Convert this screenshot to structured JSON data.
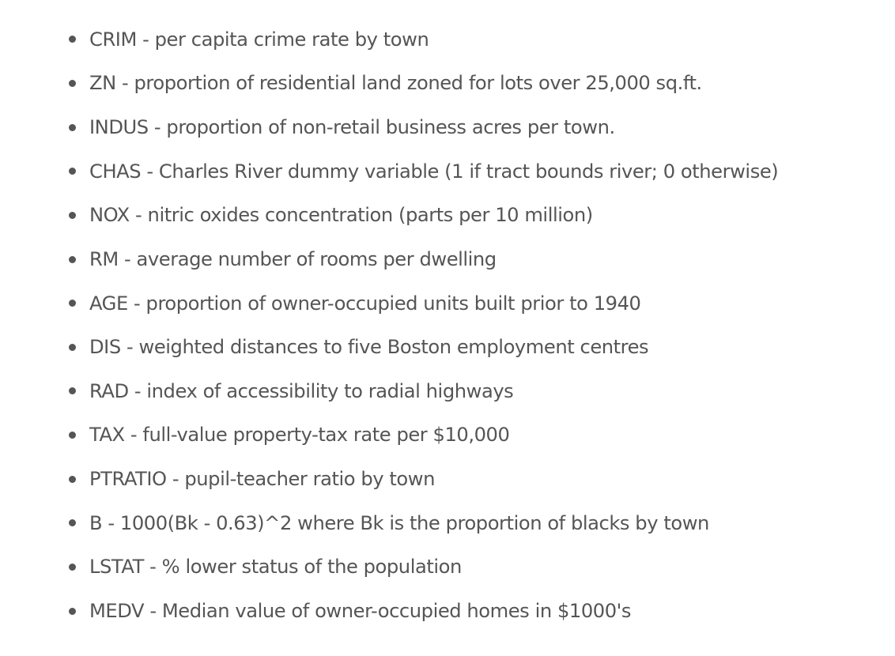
{
  "features": [
    {
      "text": "CRIM - per capita crime rate by town"
    },
    {
      "text": "ZN - proportion of residential land zoned for lots over 25,000 sq.ft."
    },
    {
      "text": "INDUS - proportion of non-retail business acres per town."
    },
    {
      "text": "CHAS - Charles River dummy variable (1 if tract bounds river; 0 otherwise)"
    },
    {
      "text": "NOX - nitric oxides concentration (parts per 10 million)"
    },
    {
      "text": "RM - average number of rooms per dwelling"
    },
    {
      "text": "AGE - proportion of owner-occupied units built prior to 1940"
    },
    {
      "text": "DIS - weighted distances to five Boston employment centres"
    },
    {
      "text": "RAD - index of accessibility to radial highways"
    },
    {
      "text": "TAX - full-value property-tax rate per $10,000"
    },
    {
      "text": "PTRATIO - pupil-teacher ratio by town"
    },
    {
      "text": "B - 1000(Bk - 0.63)^2 where Bk is the proportion of blacks by town"
    },
    {
      "text": "LSTAT - % lower status of the population"
    },
    {
      "text": "MEDV - Median value of owner-occupied homes in $1000's"
    }
  ]
}
